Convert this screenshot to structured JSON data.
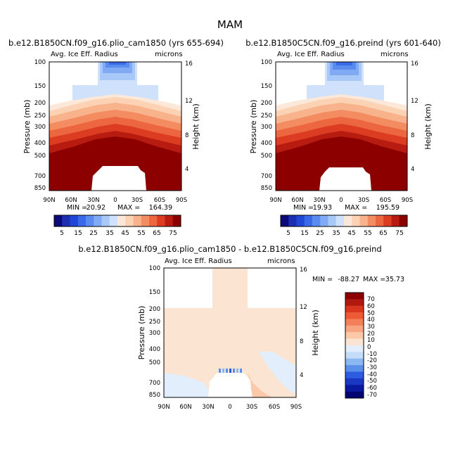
{
  "figure_title": "MAM",
  "chart_data": [
    {
      "type": "heatmap",
      "title": "b.e12.B1850CN.f09_g16.plio_cam1850 (yrs 655-694)",
      "left_label": "Avg. Ice Eff. Radius",
      "right_label": "microns",
      "ylabel": "Pressure (mb)",
      "y2label": "Height (km)",
      "x_ticks": [
        "90N",
        "60N",
        "30N",
        "0",
        "30S",
        "60S",
        "90S"
      ],
      "p_ticks": [
        "100",
        "150",
        "200",
        "250",
        "300",
        "400",
        "500",
        "700",
        "850"
      ],
      "h_ticks": [
        "16",
        "12",
        "8",
        "4"
      ],
      "min_label": "MIN =",
      "min_value": "20.92",
      "max_label": "MAX =",
      "max_value": "164.39",
      "colorbar_labels": [
        "5",
        "15",
        "25",
        "35",
        "45",
        "55",
        "65",
        "75"
      ]
    },
    {
      "type": "heatmap",
      "title": "b.e12.B1850C5CN.f09_g16.preind (yrs 601-640)",
      "left_label": "Avg. Ice Eff. Radius",
      "right_label": "microns",
      "ylabel": "Pressure (mb)",
      "y2label": "Height (km)",
      "x_ticks": [
        "90N",
        "60N",
        "30N",
        "0",
        "30S",
        "60S",
        "90S"
      ],
      "p_ticks": [
        "100",
        "150",
        "200",
        "250",
        "300",
        "400",
        "500",
        "700",
        "850"
      ],
      "h_ticks": [
        "16",
        "12",
        "8",
        "4"
      ],
      "min_label": "MIN =",
      "min_value": "19.93",
      "max_label": "MAX =",
      "max_value": "195.59",
      "colorbar_labels": [
        "5",
        "15",
        "25",
        "35",
        "45",
        "55",
        "65",
        "75"
      ]
    },
    {
      "type": "heatmap",
      "title": "b.e12.B1850CN.f09_g16.plio_cam1850 - b.e12.B1850C5CN.f09_g16.preind",
      "left_label": "Avg. Ice Eff. Radius",
      "right_label": "microns",
      "ylabel": "Pressure (mb)",
      "y2label": "Height (km)",
      "x_ticks": [
        "90N",
        "60N",
        "30N",
        "0",
        "30S",
        "60S",
        "90S"
      ],
      "p_ticks": [
        "100",
        "150",
        "200",
        "250",
        "300",
        "400",
        "500",
        "700",
        "850"
      ],
      "h_ticks": [
        "16",
        "12",
        "8",
        "4"
      ],
      "min_label": "MIN =",
      "min_value": "-88.27",
      "max_label": "MAX =",
      "max_value": "35.73",
      "colorbar_labels": [
        "70",
        "60",
        "50",
        "40",
        "30",
        "20",
        "10",
        "0",
        "-10",
        "-20",
        "-30",
        "-40",
        "-50",
        "-60",
        "-70"
      ]
    }
  ],
  "colors": {
    "abs_scale": [
      "#0a0a7a",
      "#1b2fb0",
      "#2048d8",
      "#3a6ae8",
      "#5a8cf0",
      "#80aaf4",
      "#a8c8f8",
      "#d0e2fb",
      "#fbe8d8",
      "#fbd2b4",
      "#f8b38c",
      "#f48c62",
      "#ec6640",
      "#dc3c22",
      "#b81c10",
      "#8c0000"
    ],
    "diff_scale": [
      "#8c0000",
      "#b01a0e",
      "#d8361e",
      "#ec5a36",
      "#f4805a",
      "#f8a682",
      "#fbc8aa",
      "#fbe4d2",
      "#e2eefb",
      "#c4dcf8",
      "#8cb8f2",
      "#5a90ea",
      "#2e5ce0",
      "#1a38c0",
      "#0a1aa0",
      "#050570"
    ]
  }
}
